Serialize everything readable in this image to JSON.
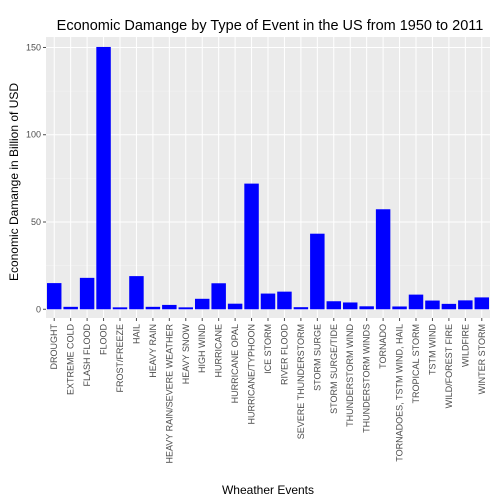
{
  "chart_data": {
    "type": "bar",
    "title": "Economic Damange by Type of Event in the US from 1950 to 2011",
    "xlabel": "Wheather Events",
    "ylabel": "Economic Damange in Billion of USD",
    "ylim": [
      -5,
      156
    ],
    "yticks": [
      0,
      50,
      100,
      150
    ],
    "grid": true,
    "bar_color": "#0000ff",
    "panel_color": "#ebebeb",
    "grid_color": "#ffffff",
    "categories": [
      "DROUGHT",
      "EXTREME COLD",
      "FLASH FLOOD",
      "FLOOD",
      "FROST/FREEZE",
      "HAIL",
      "HEAVY RAIN",
      "HEAVY RAIN/SEVERE WEATHER",
      "HEAVY SNOW",
      "HIGH WIND",
      "HURRICANE",
      "HURRICANE OPAL",
      "HURRICANE/TYPHOON",
      "ICE STORM",
      "RIVER FLOOD",
      "SEVERE THUNDERSTORM",
      "STORM SURGE",
      "STORM SURGE/TIDE",
      "THUNDERSTORM WIND",
      "THUNDERSTORM WINDS",
      "TORNADO",
      "TORNADOES, TSTM WIND, HAIL",
      "TROPICAL STORM",
      "TSTM WIND",
      "WILD/FOREST FIRE",
      "WILDFIRE",
      "WINTER STORM"
    ],
    "values": [
      15.0,
      1.4,
      18.0,
      150.3,
      1.1,
      19.0,
      1.4,
      2.5,
      1.1,
      6.0,
      14.9,
      3.2,
      72.0,
      9.0,
      10.1,
      1.2,
      43.3,
      4.6,
      3.9,
      1.7,
      57.3,
      1.6,
      8.4,
      5.0,
      3.1,
      5.1,
      6.8
    ]
  }
}
